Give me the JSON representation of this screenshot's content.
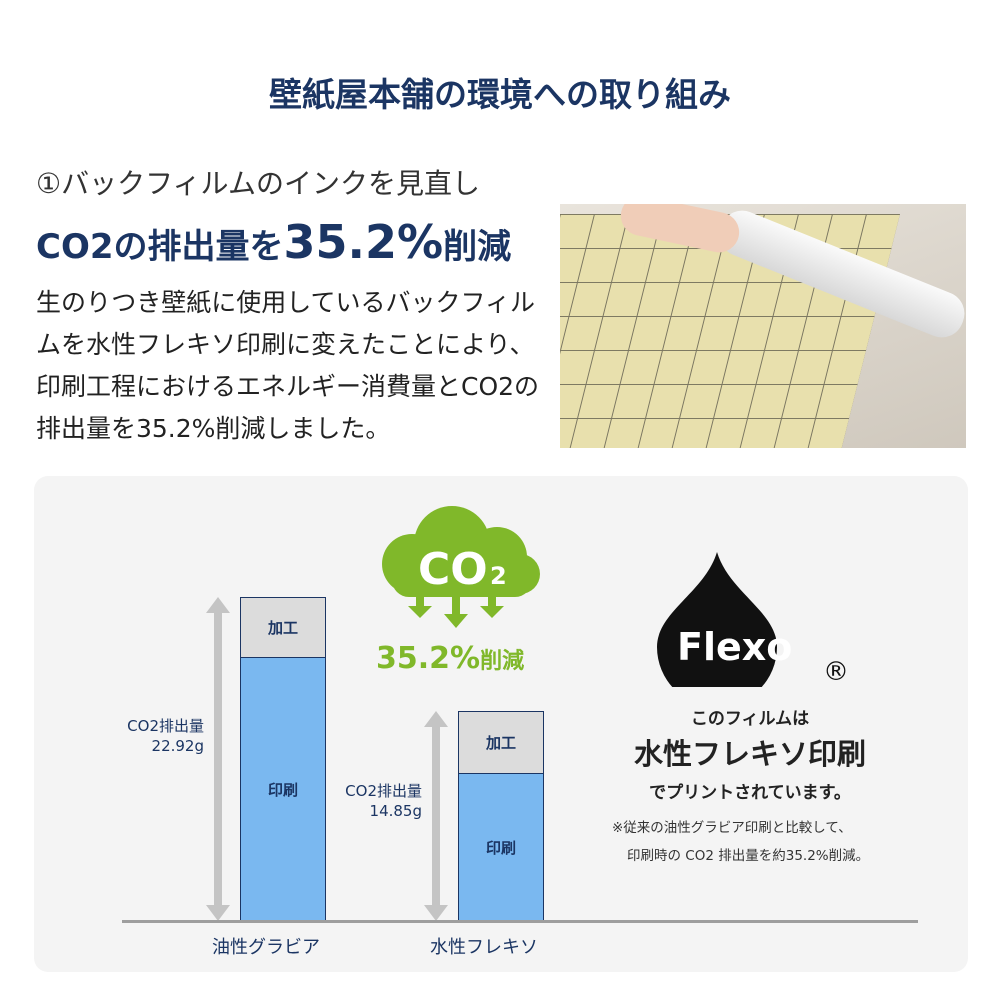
{
  "title": "壁紙屋本舗の環境への取り組み",
  "section": {
    "subtitle": "①バックフィルムのインクを見直し",
    "headline_pre": "CO2の排出量を",
    "headline_pct": "35.2%",
    "headline_post": "削減",
    "description": "生のりつき壁紙に使用しているバックフィルムを水性フレキソ印刷に変えたことにより、印刷工程におけるエネルギー消費量とCO2の排出量を35.2%削減しました。"
  },
  "badge": {
    "co2": "CO",
    "co2_sub": "2",
    "pct": "35.2%",
    "pct_suffix": "削減",
    "color": "#80b82a"
  },
  "flexo": {
    "logo": "Flexo",
    "registered": "®",
    "line1": "このフィルムは",
    "line2": "水性フレキソ印刷",
    "line3": "でプリントされています。",
    "note1": "※従来の油性グラビア印刷と比較して、",
    "note2": "印刷時の CO2 排出量を約35.2%削減。"
  },
  "chart_data": {
    "type": "bar",
    "stacked": true,
    "categories": [
      "油性グラビア",
      "水性フレキソ"
    ],
    "series": [
      {
        "name": "印刷",
        "values": [
          18.68,
          10.47
        ],
        "color": "#7ab8f0"
      },
      {
        "name": "加工",
        "values": [
          4.24,
          4.38
        ],
        "color": "#dcdcdc"
      }
    ],
    "totals": [
      22.92,
      14.85
    ],
    "total_labels": [
      [
        "CO2排出量",
        "22.92g"
      ],
      [
        "CO2排出量",
        "14.85g"
      ]
    ],
    "ylim": [
      0,
      22.92
    ],
    "grid": false
  }
}
